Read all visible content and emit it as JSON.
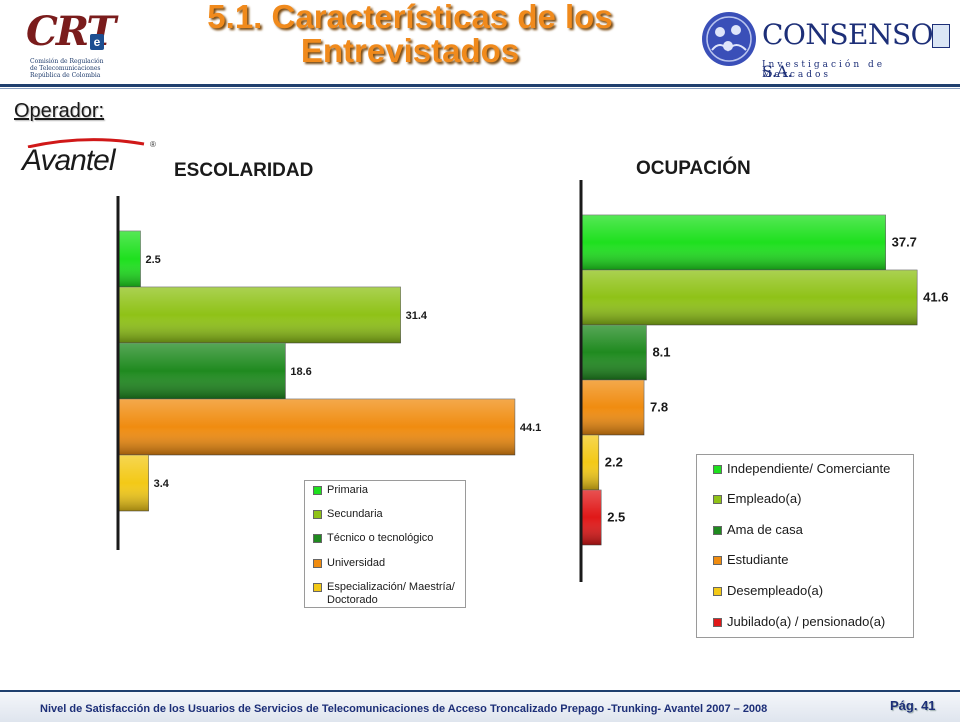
{
  "header": {
    "title_line1": "5.1. Características de los",
    "title_line2": "Entrevistados",
    "crt_logo": {
      "text": "CRT",
      "line1": "Comisión de Regulación",
      "line2": "de Telecomunicaciones",
      "line3": "República de Colombia"
    },
    "consenso_logo": {
      "brand": "CONSENSO",
      "suffix": "S.A.",
      "tagline": "Investigación de Mercados"
    }
  },
  "operator": {
    "label": "Operador:",
    "logo_text": "Avantel",
    "reg_mark": "®"
  },
  "chart_data": [
    {
      "type": "bar",
      "orientation": "horizontal",
      "title": "ESCOLARIDAD",
      "categories": [
        "Primaria",
        "Secundaria",
        "Técnico o tecnológico",
        "Universidad",
        "Especialización/ Maestría/ Doctorado"
      ],
      "values": [
        2.5,
        31.4,
        18.6,
        44.1,
        3.4
      ],
      "value_labels": [
        "2.5",
        "31.4",
        "18.6",
        "44.1",
        "3.4"
      ],
      "colors": [
        "#1ee01e",
        "#8fc217",
        "#1f8a1f",
        "#f08c10",
        "#f3c917"
      ],
      "xlim": [
        0,
        50
      ],
      "legend_position": "bottom-right",
      "grid": false
    },
    {
      "type": "bar",
      "orientation": "horizontal",
      "title": "OCUPACIÓN",
      "categories": [
        "Independiente/ Comerciante",
        "Empleado(a)",
        "Ama de casa",
        "Estudiante",
        "Desempleado(a)",
        "Jubilado(a) / pensionado(a)"
      ],
      "values": [
        37.7,
        41.6,
        8.1,
        7.8,
        2.2,
        2.5
      ],
      "value_labels": [
        "37.7",
        "41.6",
        "8.1",
        "7.8",
        "2.2",
        "2.5"
      ],
      "colors": [
        "#1ee01e",
        "#8fc217",
        "#1f8a1f",
        "#f08c10",
        "#f3c917",
        "#e01818"
      ],
      "xlim": [
        0,
        50
      ],
      "legend_position": "bottom-right",
      "grid": false
    }
  ],
  "legend_esc": {
    "items": [
      "Primaria",
      "Secundaria",
      "Técnico o tecnológico",
      "Universidad",
      "Especialización/ Maestría/",
      "Doctorado"
    ]
  },
  "legend_ocu": {
    "items": [
      "Independiente/ Comerciante",
      "Empleado(a)",
      "Ama de casa",
      "Estudiante",
      "Desempleado(a)",
      "Jubilado(a) / pensionado(a)"
    ]
  },
  "footer": {
    "text": "Nivel de Satisfacción de los Usuarios de Servicios de Telecomunicaciones de Acceso Troncalizado Prepago -Trunking- Avantel 2007 – 2008",
    "page": "Pág. 41"
  },
  "colors": {
    "title_orange": "#f08a1c",
    "navy": "#1d2f78",
    "rule": "#1f3f6e"
  }
}
